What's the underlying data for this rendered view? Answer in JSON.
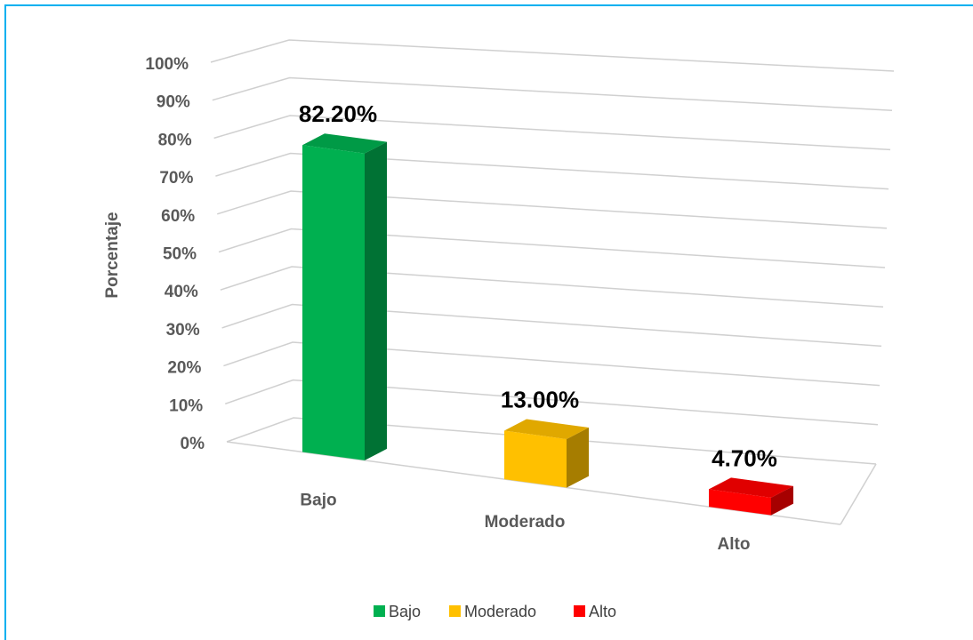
{
  "chart_data": {
    "type": "bar3d",
    "y_axis_label": "Porcentaje",
    "categories": [
      "Bajo",
      "Moderado",
      "Alto"
    ],
    "values": [
      82.2,
      13.0,
      4.7
    ],
    "value_labels": [
      "82.20%",
      "13.00%",
      "4.70%"
    ],
    "colors": [
      "#00b050",
      "#ffc000",
      "#ff0000"
    ],
    "ylim": [
      0,
      100
    ],
    "yticks": [
      {
        "value": 0,
        "label": "0%"
      },
      {
        "value": 10,
        "label": "10%"
      },
      {
        "value": 20,
        "label": "20%"
      },
      {
        "value": 30,
        "label": "30%"
      },
      {
        "value": 40,
        "label": "40%"
      },
      {
        "value": 50,
        "label": "50%"
      },
      {
        "value": 60,
        "label": "60%"
      },
      {
        "value": 70,
        "label": "70%"
      },
      {
        "value": 80,
        "label": "80%"
      },
      {
        "value": 90,
        "label": "90%"
      },
      {
        "value": 100,
        "label": "100%"
      }
    ],
    "grid": true,
    "legend": "bottom"
  }
}
